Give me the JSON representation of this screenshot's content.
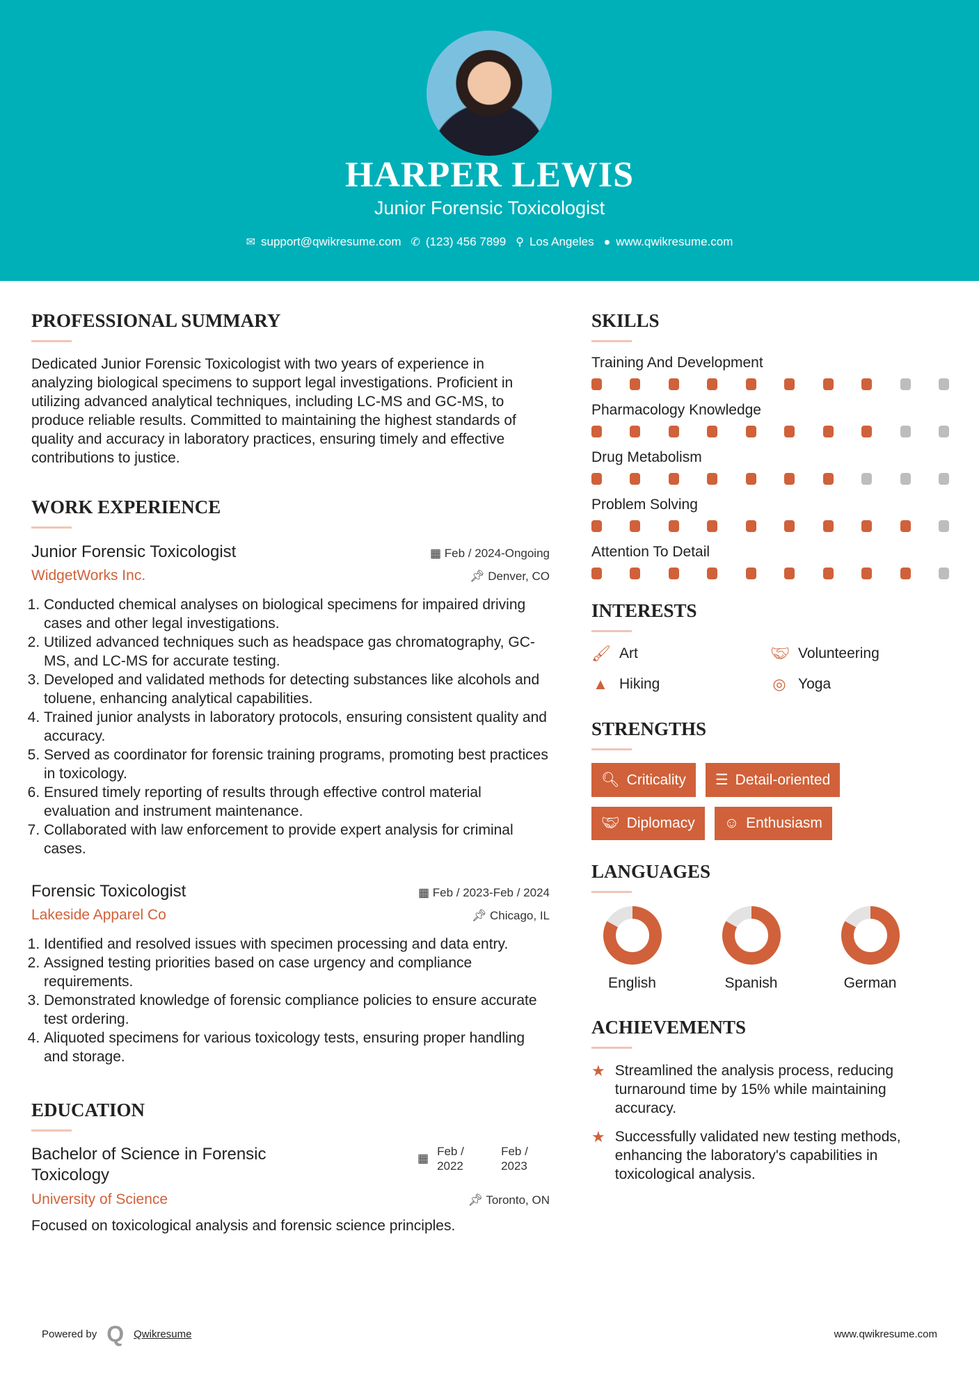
{
  "header": {
    "name": "HARPER LEWIS",
    "title": "Junior Forensic Toxicologist",
    "email": "support@qwikresume.com",
    "phone": "(123) 456 7899",
    "location": "Los Angeles",
    "website": "www.qwikresume.com"
  },
  "summary": {
    "heading": "PROFESSIONAL SUMMARY",
    "text": "Dedicated Junior Forensic Toxicologist with two years of experience in analyzing biological specimens to support legal investigations. Proficient in utilizing advanced analytical techniques, including LC-MS and GC-MS, to produce reliable results. Committed to maintaining the highest standards of quality and accuracy in laboratory practices, ensuring timely and effective contributions to justice."
  },
  "experience": {
    "heading": "WORK EXPERIENCE",
    "jobs": [
      {
        "title": "Junior Forensic Toxicologist",
        "dates": "Feb / 2024-Ongoing",
        "company": "WidgetWorks Inc.",
        "location": "Denver, CO",
        "items": [
          "Conducted chemical analyses on biological specimens for impaired driving cases and other legal investigations.",
          "Utilized advanced techniques such as headspace gas chromatography, GC-MS, and LC-MS for accurate testing.",
          "Developed and validated methods for detecting substances like alcohols and toluene, enhancing analytical capabilities.",
          "Trained junior analysts in laboratory protocols, ensuring consistent quality and accuracy.",
          "Served as coordinator for forensic training programs, promoting best practices in toxicology.",
          "Ensured timely reporting of results through effective control material evaluation and instrument maintenance.",
          "Collaborated with law enforcement to provide expert analysis for criminal cases."
        ]
      },
      {
        "title": "Forensic Toxicologist",
        "dates": "Feb / 2023-Feb / 2024",
        "company": "Lakeside Apparel Co",
        "location": "Chicago, IL",
        "items": [
          "Identified and resolved issues with specimen processing and data entry.",
          "Assigned testing priorities based on case urgency and compliance requirements.",
          "Demonstrated knowledge of forensic compliance policies to ensure accurate test ordering.",
          "Aliquoted specimens for various toxicology tests, ensuring proper handling and storage."
        ]
      }
    ]
  },
  "education": {
    "heading": "EDUCATION",
    "degree": "Bachelor of Science in Forensic Toxicology",
    "start": "Feb / 2022",
    "end": "Feb / 2023",
    "school": "University of Science",
    "location": "Toronto, ON",
    "description": "Focused on toxicological analysis and forensic science principles."
  },
  "skills": {
    "heading": "SKILLS",
    "items": [
      {
        "name": "Training And Development",
        "level": 8
      },
      {
        "name": "Pharmacology Knowledge",
        "level": 8
      },
      {
        "name": "Drug Metabolism",
        "level": 7
      },
      {
        "name": "Problem Solving",
        "level": 9
      },
      {
        "name": "Attention To Detail",
        "level": 9
      }
    ],
    "max": 10
  },
  "interests": {
    "heading": "INTERESTS",
    "items": [
      {
        "label": "Art",
        "icon": "paintbrush-icon"
      },
      {
        "label": "Volunteering",
        "icon": "handshake-icon"
      },
      {
        "label": "Hiking",
        "icon": "tree-icon"
      },
      {
        "label": "Yoga",
        "icon": "lifering-icon"
      }
    ]
  },
  "strengths": {
    "heading": "STRENGTHS",
    "items": [
      {
        "label": "Criticality",
        "icon": "search-icon"
      },
      {
        "label": "Detail-oriented",
        "icon": "list-icon"
      },
      {
        "label": "Diplomacy",
        "icon": "handshake-icon"
      },
      {
        "label": "Enthusiasm",
        "icon": "smile-icon"
      }
    ]
  },
  "languages": {
    "heading": "LANGUAGES",
    "items": [
      {
        "name": "English",
        "level": 0.83
      },
      {
        "name": "Spanish",
        "level": 0.83
      },
      {
        "name": "German",
        "level": 0.83
      }
    ]
  },
  "achievements": {
    "heading": "ACHIEVEMENTS",
    "items": [
      "Streamlined the analysis process, reducing turnaround time by 15% while maintaining accuracy.",
      "Successfully validated new testing methods, enhancing the laboratory's capabilities in toxicological analysis."
    ]
  },
  "footer": {
    "powered_by": "Powered by",
    "brand": "Qwikresume",
    "website": "www.qwikresume.com"
  },
  "colors": {
    "header": "#00b0b9",
    "accent": "#d0613a",
    "inactive": "#bdbdbd"
  }
}
